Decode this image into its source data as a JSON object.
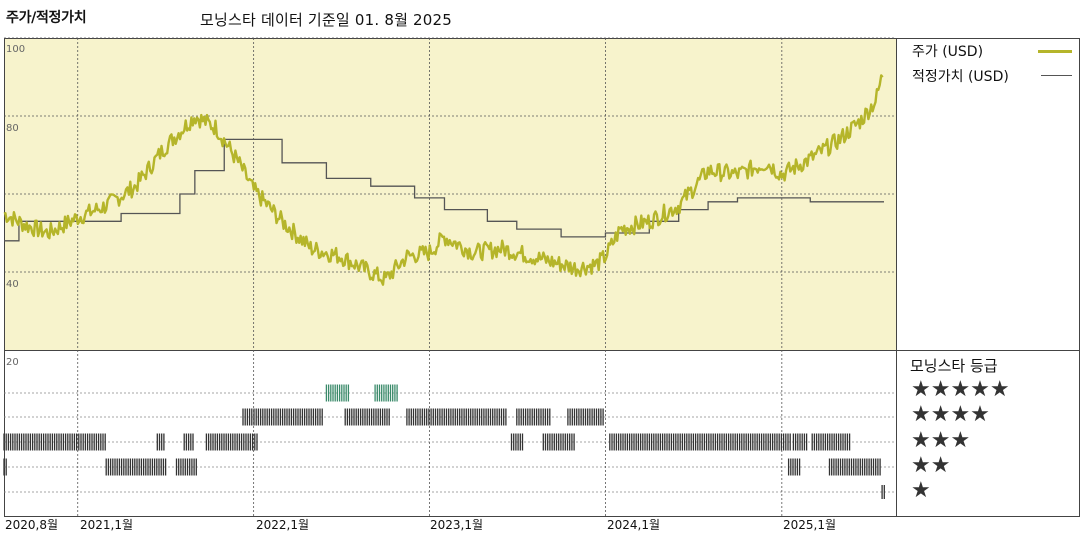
{
  "header": {
    "title": "주가/적정가치",
    "subtitle": "모닝스타 데이터 기준일 01. 8월 2025"
  },
  "legend": {
    "price_label": "주가 (USD)",
    "fair_label": "적정가치 (USD)",
    "price_color": "#b5b52a",
    "fair_color": "#555555"
  },
  "rating": {
    "title": "모닝스타 등급",
    "stars": [
      "★★★★★",
      "★★★★",
      "★★★",
      "★★",
      "★"
    ],
    "colors": {
      "five": "#3a8a6a",
      "other": "#333333"
    }
  },
  "chart_data": {
    "type": "line",
    "title": "주가/적정가치",
    "subtitle": "모닝스타 데이터 기준일 01. 8월 2025",
    "x_tick_labels": [
      "2020,8월",
      "2021,1월",
      "2022,1월",
      "2023,1월",
      "2024,1월",
      "2025,1월"
    ],
    "y_tick_labels": [
      "100",
      "80",
      "40",
      "20"
    ],
    "ylim": [
      20,
      100
    ],
    "background_color": "#f7f3cc",
    "series": [
      {
        "name": "주가 (USD)",
        "color": "#b5b52a",
        "points": [
          [
            "2020-08-01",
            55
          ],
          [
            "2020-09-15",
            52
          ],
          [
            "2020-11-01",
            50
          ],
          [
            "2021-01-01",
            54
          ],
          [
            "2021-03-01",
            57
          ],
          [
            "2021-05-01",
            62
          ],
          [
            "2021-07-01",
            72
          ],
          [
            "2021-09-01",
            80
          ],
          [
            "2021-10-15",
            77
          ],
          [
            "2021-12-01",
            68
          ],
          [
            "2022-01-01",
            61
          ],
          [
            "2022-03-01",
            53
          ],
          [
            "2022-05-01",
            46
          ],
          [
            "2022-07-01",
            44
          ],
          [
            "2022-08-15",
            41
          ],
          [
            "2022-10-01",
            38
          ],
          [
            "2022-11-15",
            44
          ],
          [
            "2023-01-01",
            45
          ],
          [
            "2023-02-01",
            49
          ],
          [
            "2023-04-01",
            45
          ],
          [
            "2023-06-01",
            46
          ],
          [
            "2023-08-01",
            44
          ],
          [
            "2023-10-01",
            42
          ],
          [
            "2023-11-01",
            41
          ],
          [
            "2023-12-15",
            42
          ],
          [
            "2024-01-01",
            44
          ],
          [
            "2024-02-01",
            51
          ],
          [
            "2024-04-01",
            53
          ],
          [
            "2024-06-01",
            57
          ],
          [
            "2024-08-01",
            66
          ],
          [
            "2024-10-01",
            65
          ],
          [
            "2024-12-01",
            68
          ],
          [
            "2025-01-01",
            65
          ],
          [
            "2025-03-01",
            69
          ],
          [
            "2025-05-01",
            74
          ],
          [
            "2025-06-15",
            79
          ],
          [
            "2025-07-15",
            84
          ],
          [
            "2025-08-01",
            92
          ]
        ]
      },
      {
        "name": "적정가치 (USD)",
        "color": "#555555",
        "step": true,
        "points": [
          [
            "2020-08-01",
            48
          ],
          [
            "2020-09-01",
            53
          ],
          [
            "2021-04-01",
            55
          ],
          [
            "2021-08-01",
            60
          ],
          [
            "2021-09-01",
            66
          ],
          [
            "2021-11-01",
            74
          ],
          [
            "2022-03-01",
            68
          ],
          [
            "2022-06-01",
            64
          ],
          [
            "2022-09-01",
            62
          ],
          [
            "2022-12-01",
            59
          ],
          [
            "2023-02-01",
            56
          ],
          [
            "2023-05-01",
            53
          ],
          [
            "2023-07-01",
            51
          ],
          [
            "2023-10-01",
            49
          ],
          [
            "2024-01-01",
            50
          ],
          [
            "2024-04-01",
            53
          ],
          [
            "2024-06-01",
            56
          ],
          [
            "2024-08-01",
            58
          ],
          [
            "2024-10-01",
            59
          ],
          [
            "2025-03-01",
            58
          ],
          [
            "2025-08-01",
            58
          ]
        ]
      }
    ],
    "ratings": [
      {
        "stars": 5,
        "ranges": [
          [
            "2022-06-01",
            "2022-07-20"
          ],
          [
            "2022-09-10",
            "2022-10-30"
          ]
        ]
      },
      {
        "stars": 4,
        "ranges": [
          [
            "2021-12-10",
            "2022-05-25"
          ],
          [
            "2022-07-10",
            "2022-10-10"
          ],
          [
            "2022-11-15",
            "2023-06-10"
          ],
          [
            "2023-07-01",
            "2023-09-10"
          ],
          [
            "2023-10-15",
            "2023-12-30"
          ]
        ]
      },
      {
        "stars": 3,
        "ranges": [
          [
            "2020-08-01",
            "2021-03-01"
          ],
          [
            "2021-06-15",
            "2021-07-01"
          ],
          [
            "2021-08-10",
            "2021-09-01"
          ],
          [
            "2021-09-25",
            "2022-01-10"
          ],
          [
            "2023-06-20",
            "2023-07-15"
          ],
          [
            "2023-08-25",
            "2023-11-01"
          ],
          [
            "2024-01-10",
            "2025-01-20"
          ],
          [
            "2025-01-25",
            "2025-02-25"
          ],
          [
            "2025-03-05",
            "2025-05-25"
          ]
        ]
      },
      {
        "stars": 2,
        "ranges": [
          [
            "2020-08-01",
            "2020-08-10"
          ],
          [
            "2021-03-01",
            "2021-07-05"
          ],
          [
            "2021-07-25",
            "2021-09-05"
          ],
          [
            "2025-01-15",
            "2025-02-10"
          ],
          [
            "2025-04-10",
            "2025-07-25"
          ]
        ]
      },
      {
        "stars": 1,
        "ranges": [
          [
            "2025-07-28",
            "2025-08-05"
          ]
        ]
      }
    ]
  }
}
